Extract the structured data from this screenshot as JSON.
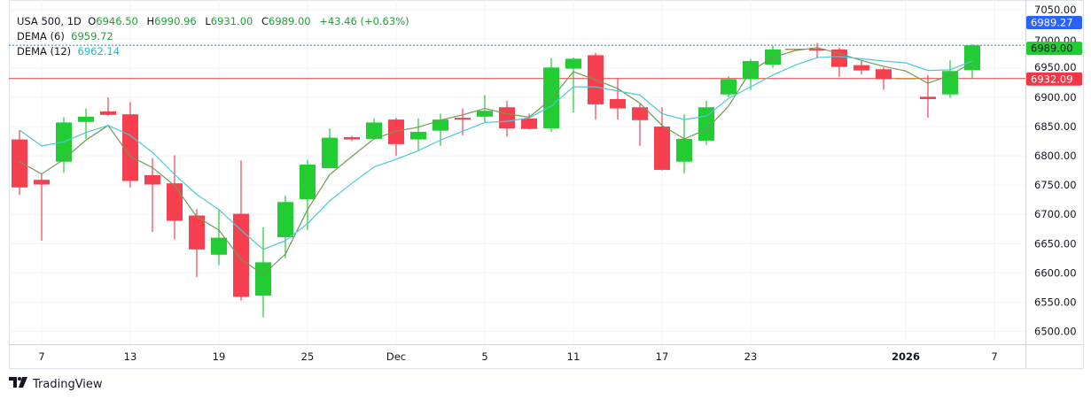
{
  "legend": {
    "symbol": "USA 500, 1D",
    "open_label": "O",
    "open": "6946.50",
    "high_label": "H",
    "high": "6990.96",
    "low_label": "L",
    "low": "6931.00",
    "close_label": "C",
    "close": "6989.00",
    "change": "+43.46 (+0.63%)",
    "dema6_label": "DEMA (6)",
    "dema6_value": "6959.72",
    "dema12_label": "DEMA (12)",
    "dema12_value": "6962.14"
  },
  "branding": {
    "name": "TradingView"
  },
  "price_tags": [
    {
      "label": "6989.27",
      "value": 6989.27,
      "color": "#2962ff",
      "line": false
    },
    {
      "label": "6989.00",
      "value": 6989.0,
      "color": "#22cc33",
      "line": true,
      "line_color": "#2a8a9a",
      "dashed": true
    },
    {
      "label": "6932.09",
      "value": 6932.09,
      "color": "#f23645",
      "line": true,
      "line_color": "#e0403f",
      "dashed": false
    }
  ],
  "chart_data": {
    "type": "candlestick",
    "title": "",
    "ylim": [
      6480,
      7060
    ],
    "grid": true,
    "y_ticks": [
      "6500.00",
      "6550.00",
      "6600.00",
      "6650.00",
      "6700.00",
      "6750.00",
      "6800.00",
      "6850.00",
      "6900.00",
      "6950.00",
      "7000.00",
      "7050.00"
    ],
    "x_ticks": [
      {
        "label": "7",
        "index": 1
      },
      {
        "label": "13",
        "index": 5
      },
      {
        "label": "19",
        "index": 9
      },
      {
        "label": "25",
        "index": 13
      },
      {
        "label": "Dec",
        "index": 17
      },
      {
        "label": "5",
        "index": 21
      },
      {
        "label": "11",
        "index": 25
      },
      {
        "label": "17",
        "index": 29
      },
      {
        "label": "23",
        "index": 33
      },
      {
        "label": "2026",
        "index": 40
      },
      {
        "label": "7",
        "index": 44
      }
    ],
    "colors": {
      "up": "#22cc33",
      "down": "#f7404f",
      "dema6": "#6e9a52",
      "dema12": "#4cc8d8"
    },
    "candles": [
      {
        "date": "Nov 6",
        "o": 6828,
        "h": 6844,
        "l": 6733,
        "c": 6746
      },
      {
        "date": "Nov 7",
        "o": 6759,
        "h": 6769,
        "l": 6655,
        "c": 6751
      },
      {
        "date": "Nov 10",
        "o": 6790,
        "h": 6866,
        "l": 6771,
        "c": 6857
      },
      {
        "date": "Nov 11",
        "o": 6858,
        "h": 6881,
        "l": 6829,
        "c": 6867
      },
      {
        "date": "Nov 12",
        "o": 6876,
        "h": 6900,
        "l": 6868,
        "c": 6870
      },
      {
        "date": "Nov 13",
        "o": 6871,
        "h": 6892,
        "l": 6746,
        "c": 6757
      },
      {
        "date": "Nov 14",
        "o": 6767,
        "h": 6796,
        "l": 6670,
        "c": 6751
      },
      {
        "date": "Nov 17",
        "o": 6753,
        "h": 6801,
        "l": 6657,
        "c": 6689
      },
      {
        "date": "Nov 18",
        "o": 6698,
        "h": 6709,
        "l": 6593,
        "c": 6640
      },
      {
        "date": "Nov 19",
        "o": 6631,
        "h": 6709,
        "l": 6613,
        "c": 6660
      },
      {
        "date": "Nov 20",
        "o": 6701,
        "h": 6792,
        "l": 6553,
        "c": 6559
      },
      {
        "date": "Nov 21",
        "o": 6561,
        "h": 6678,
        "l": 6524,
        "c": 6618
      },
      {
        "date": "Nov 24",
        "o": 6661,
        "h": 6732,
        "l": 6625,
        "c": 6721
      },
      {
        "date": "Nov 25",
        "o": 6726,
        "h": 6793,
        "l": 6673,
        "c": 6785
      },
      {
        "date": "Nov 26",
        "o": 6779,
        "h": 6847,
        "l": 6779,
        "c": 6831
      },
      {
        "date": "Nov 27",
        "o": 6832,
        "h": 6834,
        "l": 6825,
        "c": 6828
      },
      {
        "date": "Nov 28",
        "o": 6829,
        "h": 6864,
        "l": 6829,
        "c": 6857
      },
      {
        "date": "Dec 1",
        "o": 6862,
        "h": 6865,
        "l": 6800,
        "c": 6820
      },
      {
        "date": "Dec 2",
        "o": 6828,
        "h": 6864,
        "l": 6810,
        "c": 6841
      },
      {
        "date": "Dec 3",
        "o": 6843,
        "h": 6872,
        "l": 6817,
        "c": 6862
      },
      {
        "date": "Dec 4",
        "o": 6865,
        "h": 6881,
        "l": 6835,
        "c": 6863
      },
      {
        "date": "Dec 5",
        "o": 6867,
        "h": 6904,
        "l": 6856,
        "c": 6877
      },
      {
        "date": "Dec 8",
        "o": 6883,
        "h": 6894,
        "l": 6833,
        "c": 6847
      },
      {
        "date": "Dec 9",
        "o": 6864,
        "h": 6872,
        "l": 6845,
        "c": 6846
      },
      {
        "date": "Dec 10",
        "o": 6847,
        "h": 6967,
        "l": 6841,
        "c": 6951
      },
      {
        "date": "Dec 11",
        "o": 6949,
        "h": 6968,
        "l": 6874,
        "c": 6966
      },
      {
        "date": "Dec 12",
        "o": 6972,
        "h": 6976,
        "l": 6862,
        "c": 6888
      },
      {
        "date": "Dec 15",
        "o": 6897,
        "h": 6933,
        "l": 6862,
        "c": 6881
      },
      {
        "date": "Dec 16",
        "o": 6883,
        "h": 6890,
        "l": 6817,
        "c": 6861
      },
      {
        "date": "Dec 17",
        "o": 6850,
        "h": 6883,
        "l": 6775,
        "c": 6776
      },
      {
        "date": "Dec 18",
        "o": 6790,
        "h": 6871,
        "l": 6770,
        "c": 6829
      },
      {
        "date": "Dec 19",
        "o": 6826,
        "h": 6894,
        "l": 6819,
        "c": 6883
      },
      {
        "date": "Dec 22",
        "o": 6905,
        "h": 6936,
        "l": 6900,
        "c": 6931
      },
      {
        "date": "Dec 23",
        "o": 6931,
        "h": 6966,
        "l": 6913,
        "c": 6962
      },
      {
        "date": "Dec 24",
        "o": 6956,
        "h": 6988,
        "l": 6951,
        "c": 6982
      },
      {
        "date": "Dec 25",
        "o": 6982,
        "h": 6982,
        "l": 6982,
        "c": 6982
      },
      {
        "date": "Dec 26",
        "o": 6983,
        "h": 6993,
        "l": 6968,
        "c": 6980
      },
      {
        "date": "Dec 29",
        "o": 6982,
        "h": 6985,
        "l": 6935,
        "c": 6952
      },
      {
        "date": "Dec 30",
        "o": 6955,
        "h": 6962,
        "l": 6939,
        "c": 6946
      },
      {
        "date": "Dec 31",
        "o": 6948,
        "h": 6951,
        "l": 6913,
        "c": 6931
      },
      {
        "date": "Jan 1",
        "o": 6932,
        "h": 6932,
        "l": 6932,
        "c": 6932
      },
      {
        "date": "Jan 2",
        "o": 6901,
        "h": 6938,
        "l": 6865,
        "c": 6897
      },
      {
        "date": "Jan 5",
        "o": 6905,
        "h": 6963,
        "l": 6899,
        "c": 6945
      },
      {
        "date": "Jan 6",
        "o": 6946.5,
        "h": 6990.96,
        "l": 6931,
        "c": 6989
      }
    ],
    "series": [
      {
        "name": "DEMA (6)",
        "values": [
          6790,
          6769,
          6794,
          6827,
          6852,
          6799,
          6780,
          6749,
          6696,
          6673,
          6623,
          6597,
          6632,
          6708,
          6768,
          6799,
          6829,
          6842,
          6849,
          6861,
          6870,
          6881,
          6872,
          6866,
          6897,
          6944,
          6930,
          6915,
          6890,
          6852,
          6829,
          6845,
          6885,
          6945,
          6968,
          6980,
          6985,
          6975,
          6963,
          6953,
          6945,
          6924,
          6938,
          6959.72
        ]
      },
      {
        "name": "DEMA (12)",
        "values": [
          6844,
          6817,
          6824,
          6840,
          6852,
          6835,
          6806,
          6768,
          6734,
          6708,
          6673,
          6640,
          6655,
          6684,
          6723,
          6753,
          6781,
          6794,
          6809,
          6827,
          6842,
          6857,
          6859,
          6865,
          6885,
          6918,
          6918,
          6911,
          6904,
          6872,
          6862,
          6868,
          6898,
          6918,
          6938,
          6955,
          6968,
          6970,
          6966,
          6962,
          6959,
          6946,
          6947,
          6962.14
        ]
      }
    ]
  }
}
